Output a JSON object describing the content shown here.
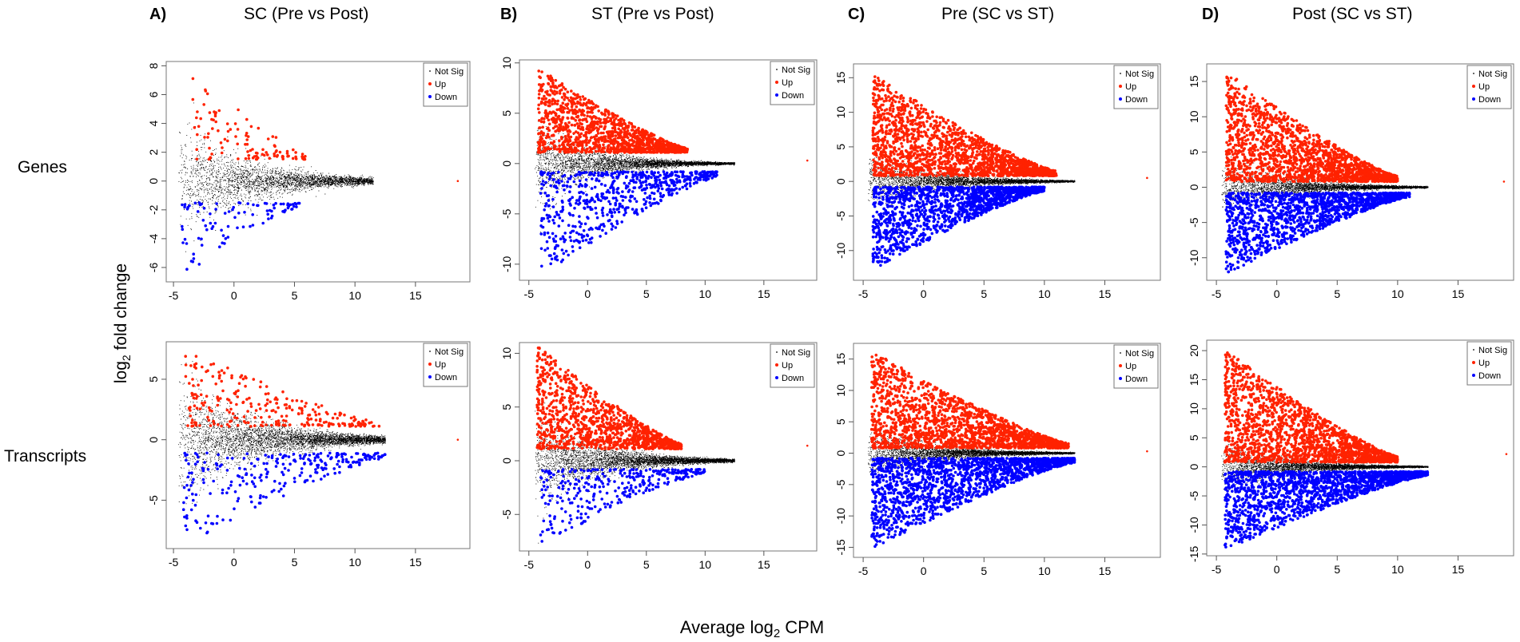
{
  "figure": {
    "row_labels": [
      "Genes",
      "Transcripts"
    ],
    "y_axis_label": {
      "prefix": "log",
      "sub": "2",
      "suffix": " fold change"
    },
    "x_axis_label": {
      "prefix": "Average log",
      "sub": "2",
      "suffix": " CPM"
    },
    "columns": [
      {
        "letter": "A)",
        "title": "SC (Pre vs Post)"
      },
      {
        "letter": "B)",
        "title": "ST (Pre vs Post)"
      },
      {
        "letter": "C)",
        "title": "Pre (SC vs ST)"
      },
      {
        "letter": "D)",
        "title": "Post (SC vs ST)"
      }
    ],
    "legend": [
      {
        "label": "Not Sig",
        "color": "#000000"
      },
      {
        "label": "Up",
        "color": "#ff2200"
      },
      {
        "label": "Down",
        "color": "#0000ff"
      }
    ]
  },
  "chart_data": [
    {
      "type": "scatter",
      "panel": "A",
      "row": "Genes",
      "title": "SC (Pre vs Post)",
      "xlabel": "Average log2 CPM",
      "ylabel": "log2 fold change",
      "xlim": [
        -5.6,
        19.5
      ],
      "ylim": [
        -7,
        8.3
      ],
      "x_ticks": [
        -5,
        0,
        5,
        10,
        15
      ],
      "y_ticks": [
        -6,
        -4,
        -2,
        0,
        2,
        4,
        6,
        8
      ],
      "y_tick_labels": [
        "-6",
        "-4",
        "-2",
        "0",
        "2",
        "4",
        "6",
        "8"
      ],
      "shape": {
        "center": 0,
        "halfwidth_at_min": 5.2,
        "decay": 0.18,
        "x_min": -4.6,
        "x_max": 11.5
      },
      "n_points": {
        "Not Sig": 3200,
        "Up": 110,
        "Down": 95
      },
      "series_summary": {
        "Up": {
          "x_range": [
            -3.5,
            6
          ],
          "y_range": [
            1.2,
            7.5
          ]
        },
        "Down": {
          "x_range": [
            -4.3,
            5.5
          ],
          "y_range": [
            -6.4,
            -1.2
          ]
        },
        "outliers": [
          [
            18.5,
            0
          ]
        ]
      },
      "legend_position": "top-right"
    },
    {
      "type": "scatter",
      "panel": "B",
      "row": "Genes",
      "title": "ST (Pre vs Post)",
      "xlabel": "Average log2 CPM",
      "ylabel": "log2 fold change",
      "xlim": [
        -5.8,
        19.5
      ],
      "ylim": [
        -11.6,
        10.3
      ],
      "x_ticks": [
        -5,
        0,
        5,
        10,
        15
      ],
      "y_ticks": [
        -10,
        -5,
        0,
        5,
        10
      ],
      "y_tick_labels": [
        "-10",
        "-5",
        "0",
        "5",
        "10"
      ],
      "shape": {
        "center": 0,
        "halfwidth_at_min": 5.5,
        "decay": 0.22,
        "x_min": -4.5,
        "x_max": 12.5
      },
      "n_points": {
        "Not Sig": 4200,
        "Up": 1300,
        "Down": 650
      },
      "series_summary": {
        "Up": {
          "x_range": [
            -4.2,
            8.5
          ],
          "y_range": [
            0.8,
            9.2
          ]
        },
        "Down": {
          "x_range": [
            -4,
            11
          ],
          "y_range": [
            -11,
            -0.5
          ]
        },
        "outliers": [
          [
            18.7,
            0.3
          ]
        ]
      },
      "legend_position": "top-right"
    },
    {
      "type": "scatter",
      "panel": "C",
      "row": "Genes",
      "title": "Pre (SC vs ST)",
      "xlabel": "Average log2 CPM",
      "ylabel": "log2 fold change",
      "xlim": [
        -5.8,
        19.6
      ],
      "ylim": [
        -14.3,
        17
      ],
      "x_ticks": [
        -5,
        0,
        5,
        10,
        15
      ],
      "y_ticks": [
        -10,
        -5,
        0,
        5,
        10,
        15
      ],
      "y_tick_labels": [
        "-10",
        "-5",
        "0",
        "5",
        "10",
        "15"
      ],
      "shape": {
        "center": 0,
        "halfwidth_at_min": 5,
        "decay": 0.2,
        "x_min": -4.6,
        "x_max": 12.5
      },
      "n_points": {
        "Not Sig": 4200,
        "Up": 1900,
        "Down": 1500
      },
      "series_summary": {
        "Up": {
          "x_range": [
            -4.2,
            11
          ],
          "y_range": [
            0.5,
            15.2
          ]
        },
        "Down": {
          "x_range": [
            -4.2,
            10
          ],
          "y_range": [
            -12.5,
            -0.5
          ]
        },
        "outliers": [
          [
            18.5,
            0.5
          ]
        ]
      },
      "legend_position": "top-right"
    },
    {
      "type": "scatter",
      "panel": "D",
      "row": "Genes",
      "title": "Post (SC vs ST)",
      "xlabel": "Average log2 CPM",
      "ylabel": "log2 fold change",
      "xlim": [
        -5.8,
        19.6
      ],
      "ylim": [
        -13.2,
        17.5
      ],
      "x_ticks": [
        -5,
        0,
        5,
        10,
        15
      ],
      "y_ticks": [
        -10,
        -5,
        0,
        5,
        10,
        15
      ],
      "y_tick_labels": [
        "-10",
        "-5",
        "0",
        "5",
        "10",
        "15"
      ],
      "shape": {
        "center": 0,
        "halfwidth_at_min": 5,
        "decay": 0.2,
        "x_min": -4.6,
        "x_max": 12.5
      },
      "n_points": {
        "Not Sig": 4200,
        "Up": 1900,
        "Down": 1500
      },
      "series_summary": {
        "Up": {
          "x_range": [
            -4.2,
            10
          ],
          "y_range": [
            0.5,
            16.2
          ]
        },
        "Down": {
          "x_range": [
            -4.2,
            11
          ],
          "y_range": [
            -12,
            -0.5
          ]
        },
        "outliers": [
          [
            18.8,
            0.8
          ]
        ]
      },
      "legend_position": "top-right"
    },
    {
      "type": "scatter",
      "panel": "A",
      "row": "Transcripts",
      "title": "SC (Pre vs Post)",
      "xlabel": "Average log2 CPM",
      "ylabel": "log2 fold change",
      "xlim": [
        -5.6,
        19.5
      ],
      "ylim": [
        -9,
        8.1
      ],
      "x_ticks": [
        -5,
        0,
        5,
        10,
        15
      ],
      "y_ticks": [
        -5,
        0,
        5
      ],
      "y_tick_labels": [
        "-5",
        "0",
        "5"
      ],
      "shape": {
        "center": 0,
        "halfwidth_at_min": 6.5,
        "decay": 0.17,
        "x_min": -4.6,
        "x_max": 12.5
      },
      "n_points": {
        "Not Sig": 4500,
        "Up": 260,
        "Down": 260
      },
      "series_summary": {
        "Up": {
          "x_range": [
            -4,
            12
          ],
          "y_range": [
            0.8,
            7.2
          ]
        },
        "Down": {
          "x_range": [
            -4.2,
            12.5
          ],
          "y_range": [
            -8.5,
            -0.8
          ]
        },
        "outliers": [
          [
            18.5,
            0
          ]
        ]
      },
      "legend_position": "top-right"
    },
    {
      "type": "scatter",
      "panel": "B",
      "row": "Transcripts",
      "title": "ST (Pre vs Post)",
      "xlabel": "Average log2 CPM",
      "ylabel": "log2 fold change",
      "xlim": [
        -5.8,
        19.5
      ],
      "ylim": [
        -8.4,
        11
      ],
      "x_ticks": [
        -5,
        0,
        5,
        10,
        15
      ],
      "y_ticks": [
        -5,
        0,
        5,
        10
      ],
      "y_tick_labels": [
        "-5",
        "0",
        "5",
        "10"
      ],
      "shape": {
        "center": 0,
        "halfwidth_at_min": 5.5,
        "decay": 0.2,
        "x_min": -4.5,
        "x_max": 12.5
      },
      "n_points": {
        "Not Sig": 4800,
        "Up": 1200,
        "Down": 320
      },
      "series_summary": {
        "Up": {
          "x_range": [
            -4.3,
            8
          ],
          "y_range": [
            0.8,
            10.5
          ]
        },
        "Down": {
          "x_range": [
            -4,
            10
          ],
          "y_range": [
            -7.5,
            -0.5
          ]
        },
        "outliers": [
          [
            18.7,
            1.4
          ]
        ]
      },
      "legend_position": "top-right"
    },
    {
      "type": "scatter",
      "panel": "C",
      "row": "Transcripts",
      "title": "Pre (SC vs ST)",
      "xlabel": "Average log2 CPM",
      "ylabel": "log2 fold change",
      "xlim": [
        -5.8,
        19.6
      ],
      "ylim": [
        -16.6,
        17.5
      ],
      "x_ticks": [
        -5,
        0,
        5,
        10,
        15
      ],
      "y_ticks": [
        -15,
        -10,
        -5,
        0,
        5,
        10,
        15
      ],
      "y_tick_labels": [
        "-15",
        "-10",
        "-5",
        "0",
        "5",
        "10",
        "15"
      ],
      "shape": {
        "center": 0,
        "halfwidth_at_min": 5,
        "decay": 0.2,
        "x_min": -4.6,
        "x_max": 12.5
      },
      "n_points": {
        "Not Sig": 4800,
        "Up": 1900,
        "Down": 1800
      },
      "series_summary": {
        "Up": {
          "x_range": [
            -4.3,
            12
          ],
          "y_range": [
            0.5,
            16
          ]
        },
        "Down": {
          "x_range": [
            -4.3,
            12.5
          ],
          "y_range": [
            -15,
            -0.5
          ]
        },
        "outliers": [
          [
            18.5,
            0.3
          ]
        ]
      },
      "legend_position": "top-right"
    },
    {
      "type": "scatter",
      "panel": "D",
      "row": "Transcripts",
      "title": "Post (SC vs ST)",
      "xlabel": "Average log2 CPM",
      "ylabel": "log2 fold change",
      "xlim": [
        -5.8,
        19.6
      ],
      "ylim": [
        -15.3,
        21.8
      ],
      "x_ticks": [
        -5,
        0,
        5,
        10,
        15
      ],
      "y_ticks": [
        -15,
        -10,
        -5,
        0,
        5,
        10,
        15,
        20
      ],
      "y_tick_labels": [
        "-15",
        "-10",
        "-5",
        "0",
        "5",
        "10",
        "15",
        "20"
      ],
      "shape": {
        "center": 0,
        "halfwidth_at_min": 5,
        "decay": 0.2,
        "x_min": -4.6,
        "x_max": 12.5
      },
      "n_points": {
        "Not Sig": 4800,
        "Up": 1900,
        "Down": 1800
      },
      "series_summary": {
        "Up": {
          "x_range": [
            -4.3,
            10
          ],
          "y_range": [
            0.5,
            20
          ]
        },
        "Down": {
          "x_range": [
            -4.3,
            12.5
          ],
          "y_range": [
            -14,
            -0.5
          ]
        },
        "outliers": [
          [
            19,
            2.2
          ]
        ]
      },
      "legend_position": "top-right"
    }
  ]
}
